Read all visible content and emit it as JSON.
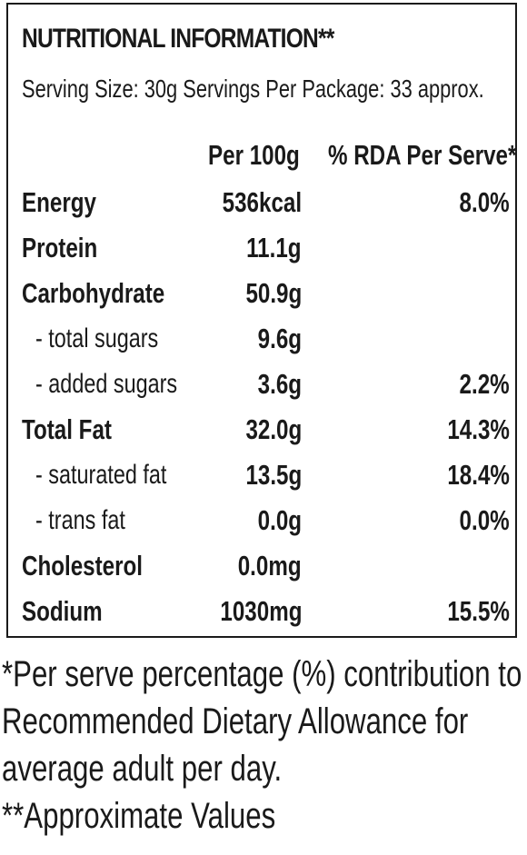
{
  "panel": {
    "title": "NUTRITIONAL INFORMATION**",
    "serving_info": "Serving Size: 30g  Servings Per Package: 33 approx.",
    "col_per100": "Per 100g",
    "col_rda": "% RDA Per Serve*"
  },
  "rows": [
    {
      "name": "Energy",
      "per100": "536kcal",
      "rda": "8.0%"
    },
    {
      "name": "Protein",
      "per100": "11.1g",
      "rda": ""
    },
    {
      "name": "Carbohydrate",
      "per100": "50.9g",
      "rda": ""
    },
    {
      "name": "- total sugars",
      "per100": "9.6g",
      "rda": ""
    },
    {
      "name": "- added sugars",
      "per100": "3.6g",
      "rda": "2.2%"
    },
    {
      "name": "Total Fat",
      "per100": "32.0g",
      "rda": "14.3%"
    },
    {
      "name": "- saturated fat",
      "per100": "13.5g",
      "rda": "18.4%"
    },
    {
      "name": "- trans fat",
      "per100": "0.0g",
      "rda": "0.0%"
    },
    {
      "name": "Cholesterol",
      "per100": "0.0mg",
      "rda": ""
    },
    {
      "name": "Sodium",
      "per100": "1030mg",
      "rda": "15.5%"
    }
  ],
  "footnotes": {
    "line1": "*Per serve percentage (%) contribution to",
    "line2": "Recommended Dietary Allowance for",
    "line3": "average adult per day.",
    "line4": "**Approximate Values"
  }
}
